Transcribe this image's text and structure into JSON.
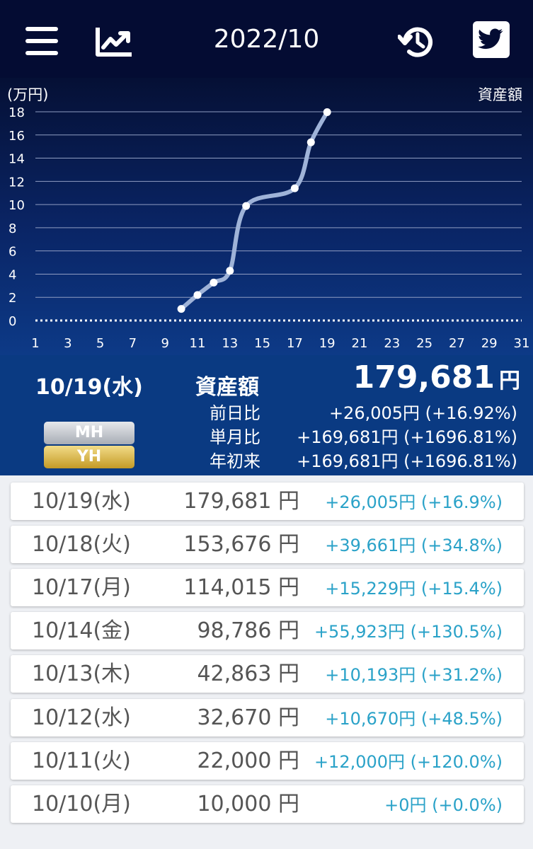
{
  "header": {
    "title": "2022/10",
    "icons": {
      "menu": "menu-icon",
      "chart": "line-chart-icon",
      "history": "history-icon",
      "share": "twitter-icon"
    }
  },
  "chart_data": {
    "type": "line",
    "unit_label": "(万円)",
    "series_label": "資産額",
    "x_ticks": [
      1,
      3,
      5,
      7,
      9,
      11,
      13,
      15,
      17,
      19,
      21,
      23,
      25,
      27,
      29,
      31
    ],
    "y_ticks": [
      0,
      2,
      4,
      6,
      8,
      10,
      12,
      14,
      16,
      18
    ],
    "xlim": [
      1,
      31
    ],
    "ylim": [
      0,
      18
    ],
    "series": [
      {
        "name": "資産額",
        "x": [
          10,
          11,
          12,
          13,
          14,
          17,
          18,
          19
        ],
        "y": [
          1.0,
          2.2,
          3.27,
          4.29,
          9.88,
          11.4,
          15.37,
          17.97
        ]
      }
    ],
    "grid": true,
    "colors": {
      "line": "#9fb3d8",
      "point": "#ffffff",
      "grid": "#8f9dc2",
      "axis_text": "#ffffff"
    }
  },
  "summary": {
    "date": "10/19(水)",
    "label": "資産額",
    "value": "179,681",
    "unit": "円",
    "rows": [
      {
        "label": "前日比",
        "value": "+26,005円 (+16.92%)"
      },
      {
        "label": "単月比",
        "value": "+169,681円 (+1696.81%)"
      },
      {
        "label": "年初来",
        "value": "+169,681円 (+1696.81%)"
      }
    ],
    "badges": {
      "mh": "MH",
      "yh": "YH"
    }
  },
  "list": [
    {
      "date": "10/19(水)",
      "amount": "179,681",
      "unit": "円",
      "change": "+26,005円 (+16.9%)"
    },
    {
      "date": "10/18(火)",
      "amount": "153,676",
      "unit": "円",
      "change": "+39,661円 (+34.8%)"
    },
    {
      "date": "10/17(月)",
      "amount": "114,015",
      "unit": "円",
      "change": "+15,229円 (+15.4%)"
    },
    {
      "date": "10/14(金)",
      "amount": "98,786",
      "unit": "円",
      "change": "+55,923円 (+130.5%)"
    },
    {
      "date": "10/13(木)",
      "amount": "42,863",
      "unit": "円",
      "change": "+10,193円 (+31.2%)"
    },
    {
      "date": "10/12(水)",
      "amount": "32,670",
      "unit": "円",
      "change": "+10,670円 (+48.5%)"
    },
    {
      "date": "10/11(火)",
      "amount": "22,000",
      "unit": "円",
      "change": "+12,000円 (+120.0%)"
    },
    {
      "date": "10/10(月)",
      "amount": "10,000",
      "unit": "円",
      "change": "+0円 (+0.0%)"
    }
  ],
  "colors": {
    "header_bg": "#040c33",
    "summary_bg": "#0a3a82",
    "positive": "#2aa2c8",
    "badge_mh": "#bfc3ca",
    "badge_yh": "#dcb94a"
  }
}
